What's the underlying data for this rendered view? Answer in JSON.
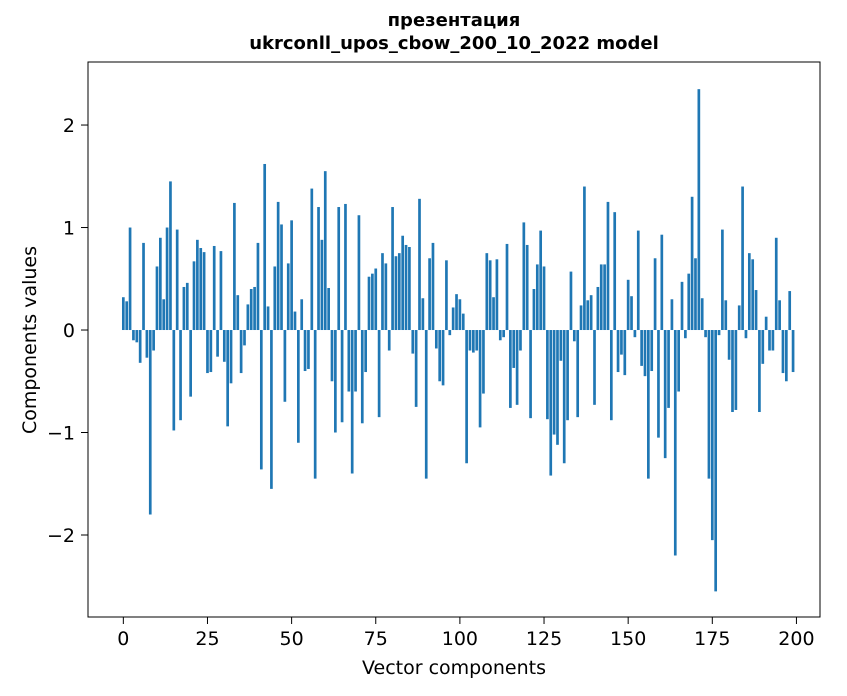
{
  "chart_data": {
    "type": "bar",
    "title": "презентация",
    "subtitle": "ukrconll_upos_cbow_200_10_2022 model",
    "xlabel": "Vector components",
    "ylabel": "Components values",
    "x_ticks": [
      0,
      25,
      50,
      75,
      100,
      125,
      150,
      175,
      200
    ],
    "y_ticks": [
      -2,
      -1,
      0,
      1,
      2
    ],
    "xlim": [
      -10.5,
      207.0
    ],
    "ylim": [
      -2.8,
      2.615
    ],
    "grid": false,
    "legend": "none",
    "bar_color": "#1f77b4",
    "bar_width": 0.8,
    "x_start": 0,
    "values": [
      0.32,
      0.28,
      1.0,
      -0.1,
      -0.12,
      -0.32,
      0.85,
      -0.27,
      -1.8,
      -0.2,
      0.62,
      0.9,
      0.3,
      1.0,
      1.45,
      -0.98,
      0.98,
      -0.88,
      0.42,
      0.46,
      -0.65,
      0.67,
      0.88,
      0.8,
      0.76,
      -0.42,
      -0.41,
      0.82,
      -0.26,
      0.77,
      -0.31,
      -0.94,
      -0.52,
      1.24,
      0.34,
      -0.42,
      -0.15,
      0.25,
      0.4,
      0.42,
      0.85,
      -1.36,
      1.62,
      0.23,
      -1.55,
      0.62,
      1.25,
      1.03,
      -0.7,
      0.65,
      1.07,
      0.18,
      -1.1,
      0.3,
      -0.4,
      -0.38,
      1.38,
      -1.45,
      1.2,
      0.88,
      1.55,
      0.41,
      -0.5,
      -1.0,
      1.2,
      -0.9,
      1.23,
      -0.6,
      -1.4,
      -0.6,
      1.12,
      -0.91,
      -0.41,
      0.52,
      0.55,
      0.6,
      -0.85,
      0.75,
      0.65,
      -0.2,
      1.2,
      0.72,
      0.75,
      0.92,
      0.83,
      0.81,
      -0.23,
      -0.75,
      1.28,
      0.31,
      -1.45,
      0.7,
      0.85,
      -0.18,
      -0.5,
      -0.54,
      0.68,
      -0.05,
      0.22,
      0.35,
      0.3,
      0.16,
      -1.3,
      -0.2,
      -0.22,
      -0.2,
      -0.95,
      -0.62,
      0.75,
      0.68,
      0.32,
      0.69,
      -0.1,
      -0.07,
      0.84,
      -0.76,
      -0.37,
      -0.73,
      -0.2,
      1.05,
      0.83,
      -0.86,
      0.4,
      0.64,
      0.97,
      0.62,
      -0.87,
      -1.42,
      -1.02,
      -1.12,
      -0.3,
      -1.3,
      -0.88,
      0.57,
      -0.11,
      -0.85,
      0.24,
      1.4,
      0.29,
      0.34,
      -0.73,
      0.42,
      0.64,
      0.64,
      1.25,
      -0.88,
      1.15,
      -0.41,
      -0.24,
      -0.44,
      0.49,
      0.33,
      -0.07,
      0.97,
      -0.35,
      -0.45,
      -1.45,
      -0.4,
      0.7,
      -1.05,
      0.93,
      -1.25,
      -0.76,
      0.3,
      -2.2,
      -0.6,
      0.47,
      -0.08,
      0.55,
      1.3,
      0.7,
      2.35,
      0.31,
      -0.07,
      -1.45,
      -2.05,
      -2.55,
      -0.05,
      0.98,
      0.29,
      -0.29,
      -0.8,
      -0.78,
      0.24,
      1.4,
      -0.08,
      0.75,
      0.69,
      0.39,
      -0.8,
      -0.33,
      0.13,
      -0.2,
      -0.2,
      0.9,
      0.29,
      -0.42,
      -0.5,
      0.38,
      -0.41
    ]
  }
}
